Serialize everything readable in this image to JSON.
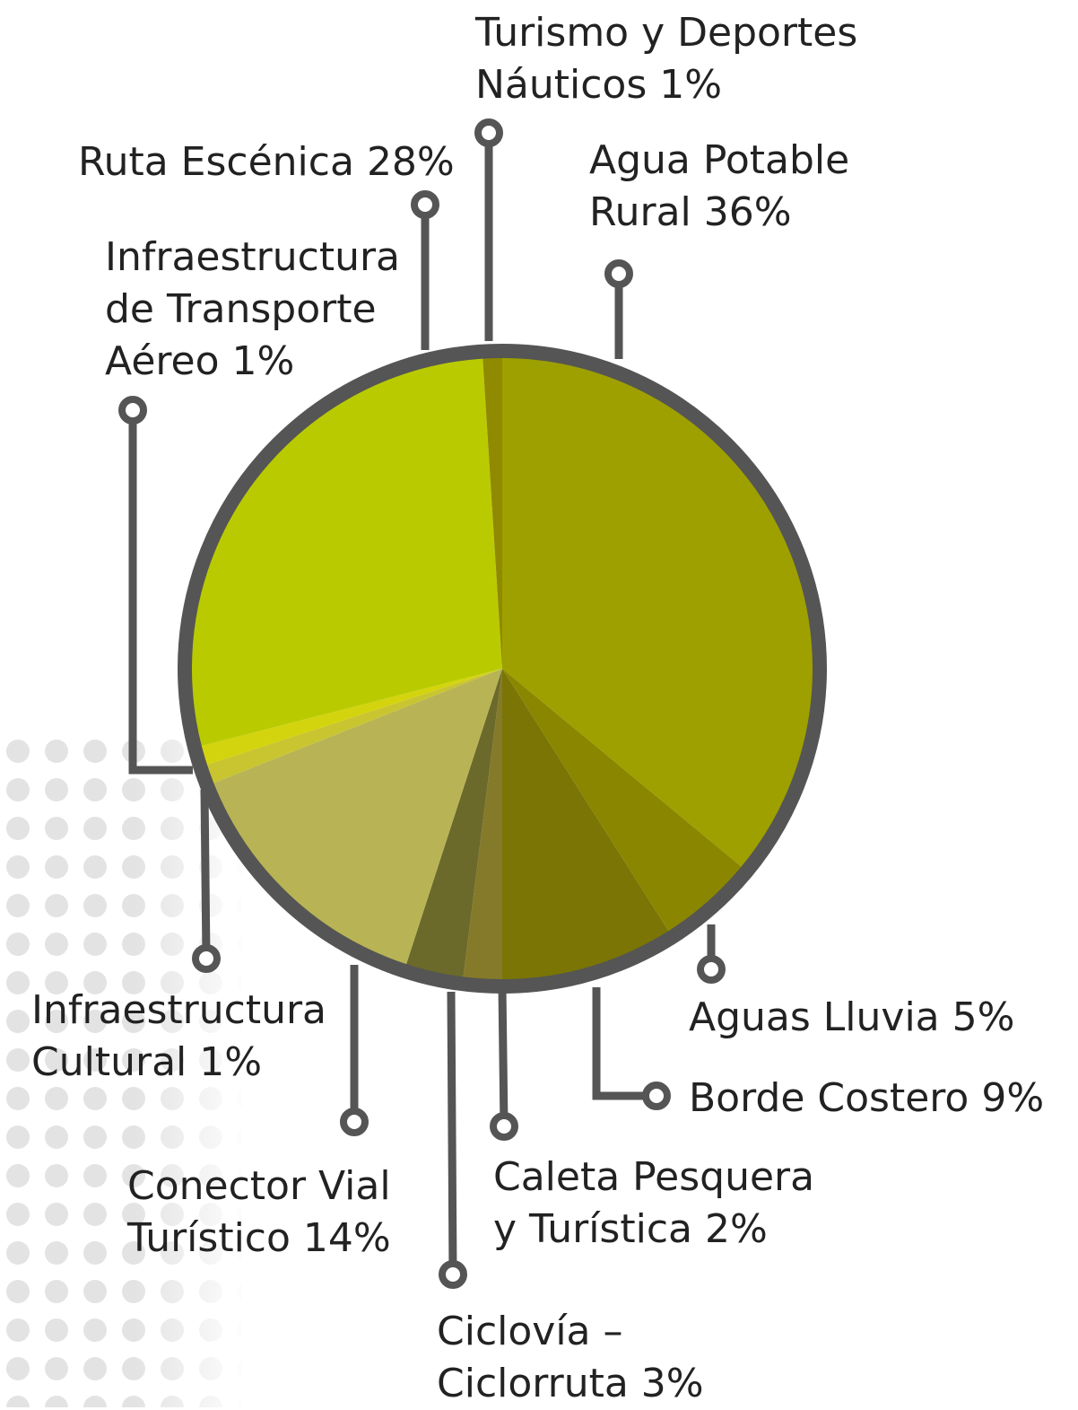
{
  "chart_data": {
    "type": "pie",
    "categories": [
      "Agua Potable Rural",
      "Aguas Lluvia",
      "Borde Costero",
      "Caleta Pesquera y Turística",
      "Ciclovía – Ciclorruta",
      "Conector Vial Turístico",
      "Infraestructura Cultural",
      "Infraestructura de Transporte Aéreo",
      "Ruta Escénica",
      "Turismo y Deportes Náuticos"
    ],
    "values": [
      36,
      5,
      9,
      2,
      3,
      14,
      1,
      1,
      28,
      1
    ],
    "value_labels": [
      "36%",
      "5%",
      "9%",
      "2%",
      "3%",
      "14%",
      "1%",
      "1%",
      "28%",
      "1%"
    ],
    "colors": [
      "#9ea000",
      "#8b8600",
      "#7a7505",
      "#857a2a",
      "#6b6a2a",
      "#b8b455",
      "#c8c530",
      "#d4d40e",
      "#b9cb00",
      "#8f8a00"
    ]
  }
}
